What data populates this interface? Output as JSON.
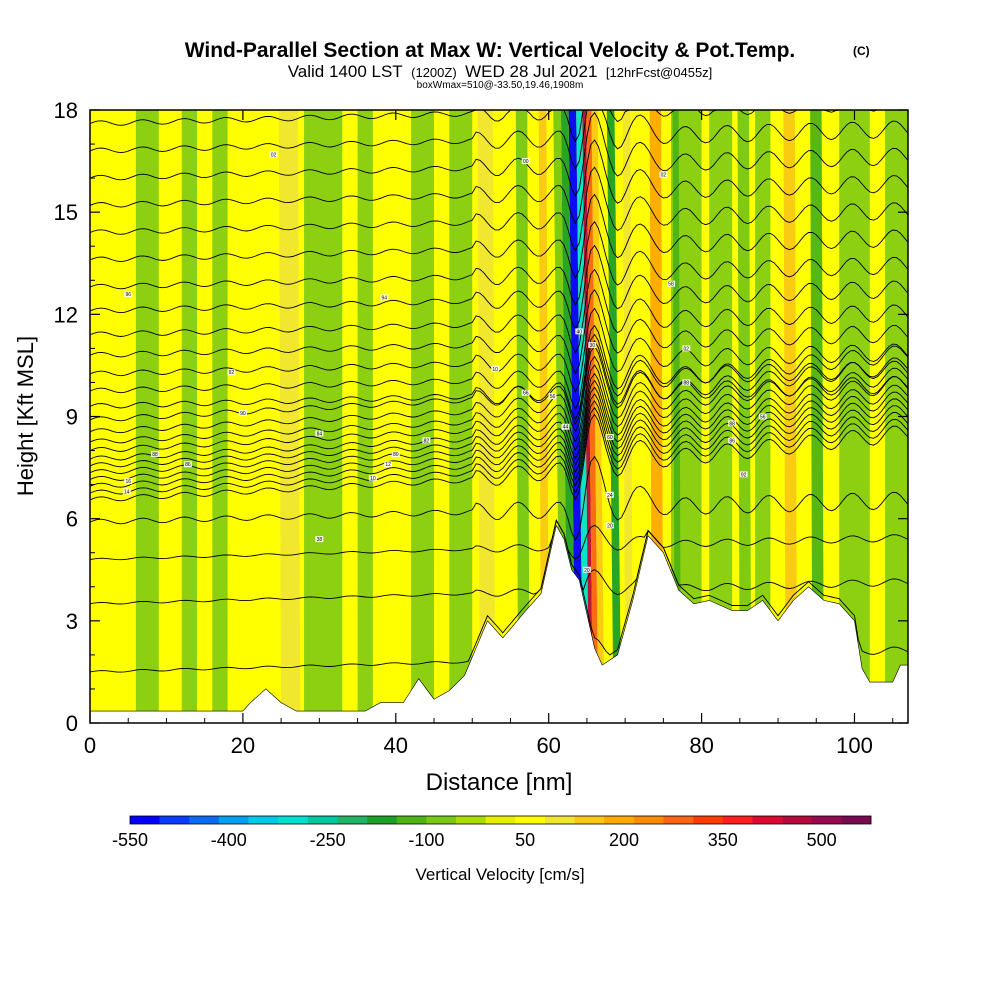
{
  "chart_data": {
    "type": "heatmap",
    "title": "Wind-Parallel Section at Max W: Vertical Velocity & Pot.Temp.",
    "title_mark": "(C)",
    "subtitle": {
      "part1": "Valid 1400 LST",
      "part2": "(1200Z)",
      "part3": "WED 28 Jul 2021",
      "part4": "[12hrFcst@0455z]"
    },
    "box_info": "boxWmax=510@-33.50,19.46,1908m",
    "xlabel": "Distance [nm]",
    "ylabel": "Height [Kft MSL]",
    "xlim": [
      0,
      107
    ],
    "ylim": [
      0,
      18
    ],
    "x_ticks": [
      "0",
      "20",
      "40",
      "60",
      "80",
      "100"
    ],
    "y_ticks": [
      "0",
      "3",
      "6",
      "9",
      "12",
      "15",
      "18"
    ],
    "x_tick_values": [
      0,
      20,
      40,
      60,
      80,
      100
    ],
    "y_tick_values": [
      0,
      3,
      6,
      9,
      12,
      15,
      18
    ],
    "colorbar": {
      "label": "Vertical Velocity [cm/s]",
      "tick_labels": [
        "-550",
        "-400",
        "-250",
        "-100",
        "50",
        "200",
        "350",
        "500"
      ],
      "tick_values": [
        -550,
        -400,
        -250,
        -100,
        50,
        200,
        350,
        500
      ],
      "range": [
        -550,
        575
      ],
      "colors": [
        "#0000ff",
        "#0a3cff",
        "#0a6cf0",
        "#00a0f0",
        "#00c8e6",
        "#00e0d0",
        "#00c8a0",
        "#22b464",
        "#1ea028",
        "#4eb414",
        "#78c814",
        "#aadc00",
        "#e6f000",
        "#ffff00",
        "#f0e632",
        "#fac814",
        "#ffaa00",
        "#ff8c00",
        "#fa6414",
        "#ff3c00",
        "#ff1e1e",
        "#dc0a32",
        "#b40a3c",
        "#960a50",
        "#780a50"
      ]
    },
    "terrain_profile": [
      [
        0,
        0.35
      ],
      [
        20,
        0.35
      ],
      [
        21,
        0.6
      ],
      [
        23,
        1.0
      ],
      [
        25,
        0.6
      ],
      [
        27,
        0.35
      ],
      [
        36,
        0.35
      ],
      [
        38,
        0.6
      ],
      [
        41,
        0.6
      ],
      [
        43,
        1.3
      ],
      [
        45,
        0.7
      ],
      [
        47,
        0.95
      ],
      [
        49,
        1.4
      ],
      [
        52,
        3.0
      ],
      [
        54,
        2.5
      ],
      [
        57,
        3.3
      ],
      [
        59,
        3.8
      ],
      [
        61,
        5.8
      ],
      [
        62,
        5.4
      ],
      [
        63,
        4.5
      ],
      [
        64,
        4.2
      ],
      [
        65,
        3.2
      ],
      [
        66,
        2.2
      ],
      [
        67,
        1.7
      ],
      [
        69,
        2.0
      ],
      [
        71,
        3.6
      ],
      [
        73,
        5.5
      ],
      [
        75,
        5.0
      ],
      [
        77,
        3.9
      ],
      [
        79,
        3.5
      ],
      [
        81,
        3.6
      ],
      [
        84,
        3.3
      ],
      [
        86,
        3.3
      ],
      [
        88,
        3.6
      ],
      [
        90,
        3.0
      ],
      [
        92,
        3.6
      ],
      [
        94,
        4.0
      ],
      [
        96,
        3.6
      ],
      [
        98,
        3.5
      ],
      [
        100,
        3.0
      ],
      [
        101,
        1.6
      ],
      [
        102,
        1.2
      ],
      [
        105,
        1.2
      ],
      [
        106,
        1.7
      ],
      [
        107,
        1.7
      ]
    ],
    "velocity_bands": [
      {
        "x": [
          63.5,
          64.5
        ],
        "w": -550
      },
      {
        "x": [
          64.5,
          65.3
        ],
        "w": -300
      },
      {
        "x": [
          62.5,
          63.5
        ],
        "w": -180
      },
      {
        "x": [
          65.3,
          65.8
        ],
        "w": 450
      },
      {
        "x": [
          65.8,
          66.5
        ],
        "w": 300
      },
      {
        "x": [
          66.5,
          67.3
        ],
        "w": 150
      },
      {
        "x": [
          61.5,
          62.5
        ],
        "w": -100
      },
      {
        "x": [
          68.5,
          69.5
        ],
        "w": -150
      },
      {
        "x": [
          70,
          71
        ],
        "w": 120
      },
      {
        "x": [
          73.5,
          75
        ],
        "w": 180
      },
      {
        "x": [
          76.5,
          77.3
        ],
        "w": -120
      },
      {
        "x": [
          85,
          86.5
        ],
        "w": -100
      },
      {
        "x": [
          91,
          92.5
        ],
        "w": 160
      },
      {
        "x": [
          94.5,
          96
        ],
        "w": -110
      },
      {
        "x": [
          25,
          27.5
        ],
        "w": 120
      },
      {
        "x": [
          51,
          53
        ],
        "w": 110
      },
      {
        "x": [
          56,
          57.5
        ],
        "w": -100
      },
      {
        "x": [
          59,
          60
        ],
        "w": 130
      }
    ],
    "isentrope_base_heights": [
      1.5,
      3.5,
      4.8,
      5.9,
      6.55,
      6.75,
      6.95,
      7.15,
      7.35,
      7.55,
      7.75,
      8.0,
      8.25,
      8.55,
      8.9,
      9.3,
      9.75,
      10.25,
      10.8,
      11.4,
      12.1,
      12.8,
      13.6,
      14.4,
      15.2,
      16.0,
      16.8,
      17.6
    ],
    "isentrope_labels": [
      {
        "x": 5,
        "y": 7.1,
        "text": "16"
      },
      {
        "x": 4.8,
        "y": 6.8,
        "text": "14"
      },
      {
        "x": 8.5,
        "y": 7.9,
        "text": "88"
      },
      {
        "x": 12.8,
        "y": 7.6,
        "text": "86"
      },
      {
        "x": 20,
        "y": 9.1,
        "text": "90"
      },
      {
        "x": 18.5,
        "y": 10.3,
        "text": "92"
      },
      {
        "x": 5,
        "y": 12.6,
        "text": "96"
      },
      {
        "x": 24,
        "y": 16.7,
        "text": "02"
      },
      {
        "x": 30,
        "y": 8.5,
        "text": "84"
      },
      {
        "x": 37,
        "y": 7.2,
        "text": "10"
      },
      {
        "x": 39,
        "y": 7.6,
        "text": "12"
      },
      {
        "x": 40,
        "y": 7.9,
        "text": "80"
      },
      {
        "x": 44,
        "y": 8.3,
        "text": "82"
      },
      {
        "x": 30,
        "y": 5.4,
        "text": "38"
      },
      {
        "x": 38.5,
        "y": 12.5,
        "text": "94"
      },
      {
        "x": 53,
        "y": 10.4,
        "text": "10"
      },
      {
        "x": 57,
        "y": 16.5,
        "text": "00"
      },
      {
        "x": 57,
        "y": 9.7,
        "text": "66"
      },
      {
        "x": 60.5,
        "y": 9.6,
        "text": "56"
      },
      {
        "x": 62.2,
        "y": 8.7,
        "text": "44"
      },
      {
        "x": 64,
        "y": 11.5,
        "text": "40"
      },
      {
        "x": 65.7,
        "y": 11.1,
        "text": "30"
      },
      {
        "x": 68,
        "y": 8.4,
        "text": "60"
      },
      {
        "x": 68,
        "y": 6.7,
        "text": "24"
      },
      {
        "x": 68,
        "y": 5.8,
        "text": "20"
      },
      {
        "x": 75,
        "y": 16.1,
        "text": "02"
      },
      {
        "x": 76,
        "y": 12.9,
        "text": "58"
      },
      {
        "x": 78,
        "y": 11.0,
        "text": "02"
      },
      {
        "x": 78,
        "y": 10.0,
        "text": "88"
      },
      {
        "x": 84,
        "y": 8.8,
        "text": "88"
      },
      {
        "x": 84,
        "y": 8.3,
        "text": "86"
      },
      {
        "x": 85.5,
        "y": 7.3,
        "text": "92"
      },
      {
        "x": 88,
        "y": 9.0,
        "text": "56"
      },
      {
        "x": 65,
        "y": 4.5,
        "text": "20"
      }
    ]
  }
}
